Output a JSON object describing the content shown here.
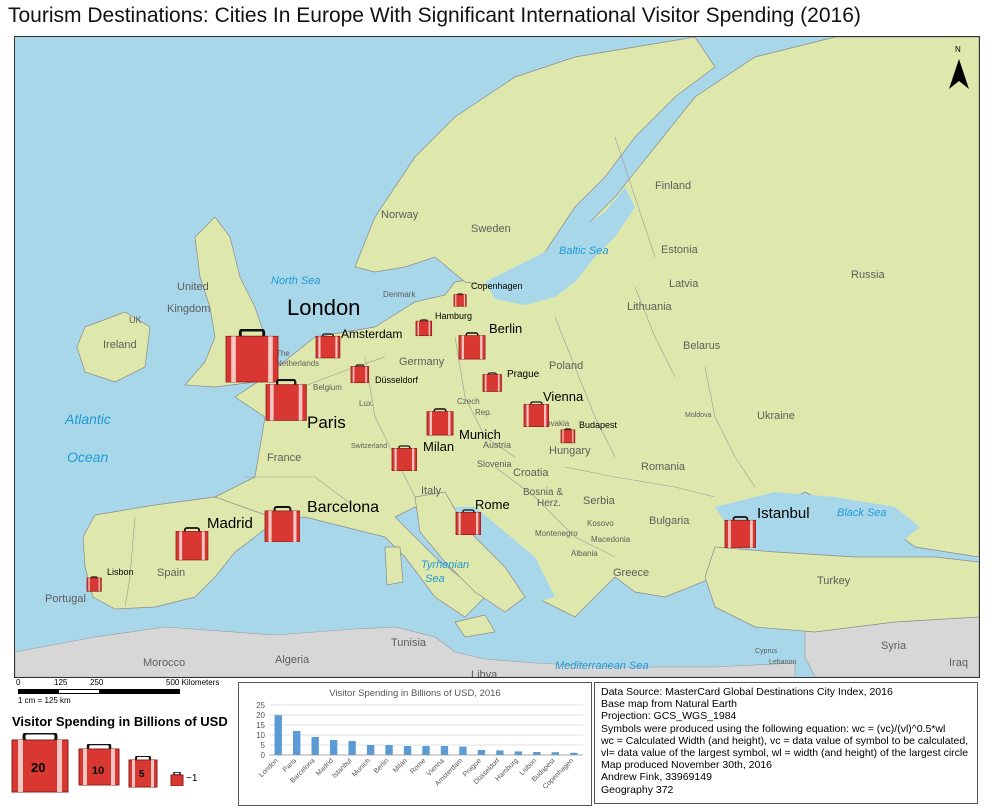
{
  "title": "Tourism Destinations: Cities In Europe With Significant International Visitor Spending (2016)",
  "north_label": "N",
  "seas": {
    "north_sea": "North Sea",
    "baltic_sea": "Baltic Sea",
    "atlantic_1": "Atlantic",
    "atlantic_2": "Ocean",
    "black_sea": "Black Sea",
    "tyrhenian_1": "Tyrhenian",
    "tyrhenian_2": "Sea",
    "mediterranean": "Mediterranean Sea"
  },
  "countries": {
    "finland": "Finland",
    "norway": "Norway",
    "sweden": "Sweden",
    "russia": "Russia",
    "estonia": "Estonia",
    "latvia": "Latvia",
    "lithuania": "Lithuania",
    "belarus": "Belarus",
    "poland": "Poland",
    "ukraine": "Ukraine",
    "moldova": "Moldova",
    "romania": "Romania",
    "bulgaria": "Bulgaria",
    "turkey": "Turkey",
    "greece": "Greece",
    "serbia": "Serbia",
    "croatia": "Croatia",
    "bosnia_1": "Bosnia &",
    "bosnia_2": "Herz.",
    "kosovo": "Kosovo",
    "macedonia": "Macedonia",
    "montenegro": "Montenegro",
    "albania": "Albania",
    "slovenia": "Slovenia",
    "italy": "Italy",
    "austria": "Austria",
    "hungary": "Hungary",
    "slovakia": "Slovakia",
    "czech_1": "Czech",
    "czech_2": "Rep.",
    "germany": "Germany",
    "denmark": "Denmark",
    "netherlands_1": "The",
    "netherlands_2": "Netherlands",
    "belgium": "Belgium",
    "lux": "Lux.",
    "switzerland": "Switzerland",
    "france": "France",
    "spain": "Spain",
    "portugal": "Portugal",
    "uk_1": "United",
    "uk_2": "Kingdom",
    "uk_3": "UK",
    "ireland": "Ireland",
    "morocco": "Morocco",
    "algeria": "Algeria",
    "tunisia": "Tunisia",
    "libya": "Libya",
    "syria": "Syria",
    "iraq": "Iraq",
    "cyprus": "Cyprus",
    "lebanon": "Lebanon"
  },
  "cities": [
    {
      "name": "London",
      "value": 19.9
    },
    {
      "name": "Paris",
      "value": 12.0
    },
    {
      "name": "Barcelona",
      "value": 9.0
    },
    {
      "name": "Madrid",
      "value": 7.5
    },
    {
      "name": "Istanbul",
      "value": 7.0
    },
    {
      "name": "Munich",
      "value": 5.0
    },
    {
      "name": "Berlin",
      "value": 5.0
    },
    {
      "name": "Milan",
      "value": 4.5
    },
    {
      "name": "Rome",
      "value": 4.5
    },
    {
      "name": "Vienna",
      "value": 4.5
    },
    {
      "name": "Amsterdam",
      "value": 4.2
    },
    {
      "name": "Prague",
      "value": 2.5
    },
    {
      "name": "Düsseldorf",
      "value": 2.3
    },
    {
      "name": "Hamburg",
      "value": 1.8
    },
    {
      "name": "Lisbon",
      "value": 1.5
    },
    {
      "name": "Budapest",
      "value": 1.4
    },
    {
      "name": "Copenhagen",
      "value": 1.1
    }
  ],
  "scale_bar": {
    "ticks": [
      "0",
      "125",
      "250",
      "500 Kilometers"
    ],
    "note": "1 cm = 125 km"
  },
  "legend": {
    "title": "Visitor Spending in Billions of USD",
    "sizes": [
      "20",
      "10",
      "5",
      "~1"
    ]
  },
  "chart_data": {
    "type": "bar",
    "title": "Visitor Spending in Billions of USD, 2016",
    "categories": [
      "London",
      "Paris",
      "Barcelona",
      "Madrid",
      "Istanbul",
      "Munich",
      "Berlin",
      "Milan",
      "Rome",
      "Vienna",
      "Amsterdam",
      "Prague",
      "Düsseldorf",
      "Hamburg",
      "Lisbon",
      "Budapest",
      "Copenhagen"
    ],
    "values": [
      19.9,
      12.0,
      9.0,
      7.5,
      7.0,
      5.0,
      5.0,
      4.5,
      4.5,
      4.5,
      4.2,
      2.5,
      2.3,
      1.8,
      1.5,
      1.4,
      1.1
    ],
    "yticks": [
      "0",
      "5",
      "10",
      "15",
      "20",
      "25"
    ],
    "ylim": [
      0,
      25
    ],
    "grid": true,
    "bar_color": "#5b9bd5"
  },
  "source_lines": [
    "Data Source: MasterCard Global Destinations City Index, 2016",
    "Base map from Natural Earth",
    "Projection: GCS_WGS_1984",
    "Symbols were produced using the following equation:  wc = (vc)/(vl)^0.5*wl",
    "wc = Calculated Width (and height), vc = data value of symbol to be calculated,",
    "vl= data value of the largest symbol, wl = width (and height) of the largest circle",
    "Map produced November 30th, 2016",
    "Andrew Fink, 33969149",
    "Geography 372"
  ],
  "colors": {
    "water": "#a9d7ea",
    "land": "#dfe8ac",
    "land_outside": "#d7d7d7",
    "suitcase": "#d93832"
  }
}
